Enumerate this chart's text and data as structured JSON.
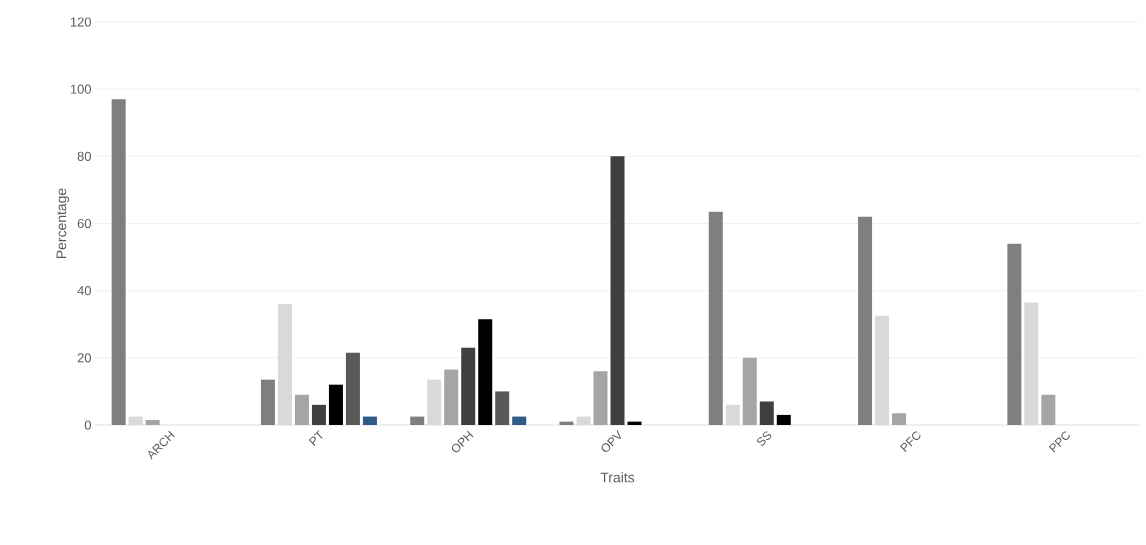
{
  "chart_data": {
    "type": "bar",
    "xlabel": "Traits",
    "ylabel": "Percentage",
    "categories": [
      "ARCH",
      "PT",
      "OPH",
      "OPV",
      "SS",
      "PFC",
      "PPC"
    ],
    "series": [
      {
        "color": "#7f7f7f",
        "values": [
          97,
          13.5,
          2.5,
          1,
          63.5,
          62,
          54
        ]
      },
      {
        "color": "#d9d9d9",
        "values": [
          2.5,
          36,
          13.5,
          2.5,
          6,
          32.5,
          36.5
        ]
      },
      {
        "color": "#a5a5a5",
        "values": [
          1.5,
          9,
          16.5,
          16,
          20,
          3.5,
          9
        ]
      },
      {
        "color": "#3f3f3f",
        "values": [
          null,
          6,
          23,
          80,
          7,
          null,
          null
        ]
      },
      {
        "color": "#000000",
        "values": [
          null,
          12,
          31.5,
          1,
          3,
          null,
          null
        ]
      },
      {
        "color": "#595959",
        "values": [
          null,
          21.5,
          10,
          null,
          null,
          null,
          null
        ]
      },
      {
        "color": "#2f5b86",
        "values": [
          null,
          2.5,
          2.5,
          null,
          null,
          null,
          null
        ]
      }
    ],
    "ylim": [
      0,
      120
    ],
    "yticks": [
      0,
      20,
      40,
      60,
      80,
      100,
      120
    ],
    "grid": "y",
    "legend": false
  }
}
